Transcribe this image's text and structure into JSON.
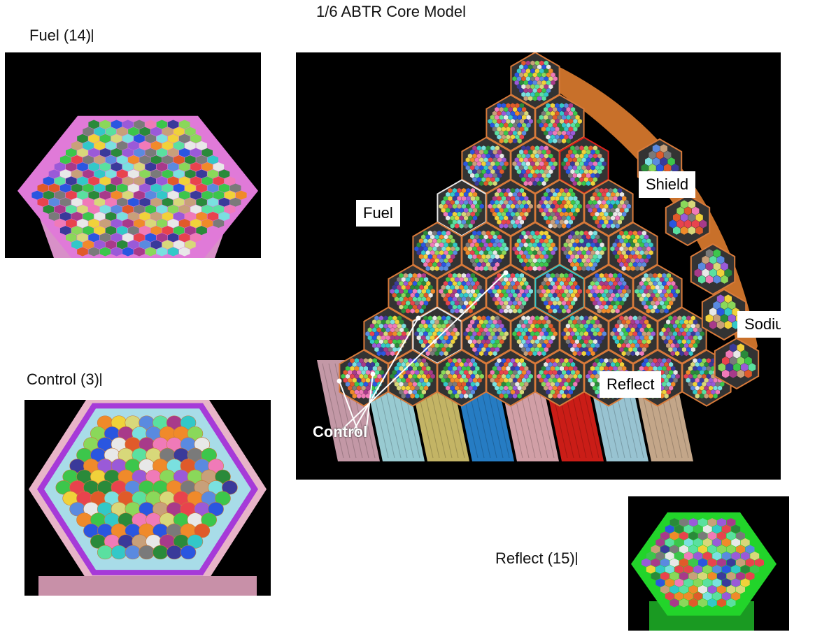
{
  "title": "1/6 ABTR Core Model",
  "insets": {
    "fuel": {
      "caption": "Fuel (14)"
    },
    "control": {
      "caption": "Control (3)"
    },
    "reflect": {
      "caption": "Reflect (15)"
    }
  },
  "core_labels": {
    "fuel": "Fuel",
    "shield": "Shield",
    "sodium": "Sodium",
    "reflect": "Reflect",
    "control": "Control"
  },
  "colors": {
    "background": "#000000",
    "fuel_duct": "#e07ad8",
    "control_duct": "#c08ad0",
    "reflect_duct": "#22d42a",
    "sodium": "#c8702a",
    "pin_palette": [
      "#e8434d",
      "#3cc64b",
      "#2a56e0",
      "#f0d23a",
      "#9a5ad8",
      "#33c8c8",
      "#f08a2a",
      "#e8e8e8",
      "#7a7a7a",
      "#2a8a3a",
      "#f07ab8",
      "#8ad85a",
      "#5a8ae0",
      "#c8a07a",
      "#a83a8a",
      "#5ae0a0",
      "#e05a2a",
      "#3a3a9a",
      "#d8d87a",
      "#7ae0e0"
    ],
    "column_sides": [
      "#d8a8b8",
      "#a8e0e8",
      "#d8c870",
      "#2a8ad8",
      "#e8b0b8",
      "#e0201a",
      "#a8d8e8",
      "#d8b898"
    ]
  }
}
